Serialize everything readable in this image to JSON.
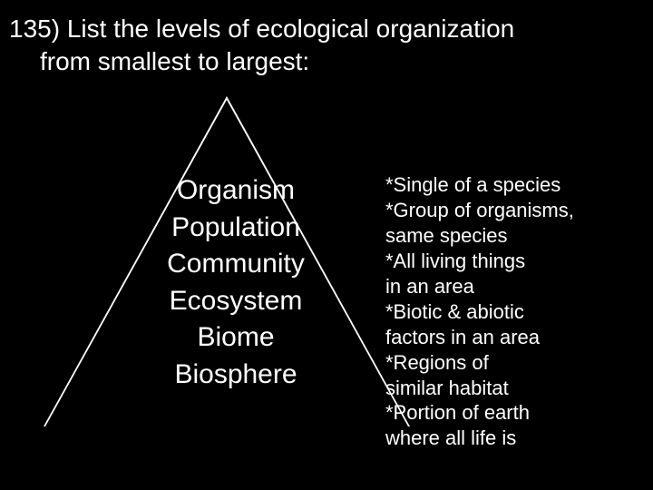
{
  "question": {
    "line1": "135) List the levels of ecological organization",
    "line2": "from smallest to largest:"
  },
  "levels": [
    "Organism",
    "Population",
    "Community",
    "Ecosystem",
    "Biome",
    "Biosphere"
  ],
  "definitions": [
    "*Single of a species",
    "*Group of organisms,",
    " same species",
    "*All living things",
    "in an area",
    "*Biotic & abiotic",
    "factors in an area",
    "*Regions of",
    "similar habitat",
    "*Portion of earth",
    "where all life is"
  ],
  "style": {
    "background_color": "#000000",
    "text_color": "#ffffff",
    "triangle_outline_color": "#ffffff",
    "question_fontsize": 28,
    "levels_fontsize": 30,
    "definitions_fontsize": 22
  }
}
